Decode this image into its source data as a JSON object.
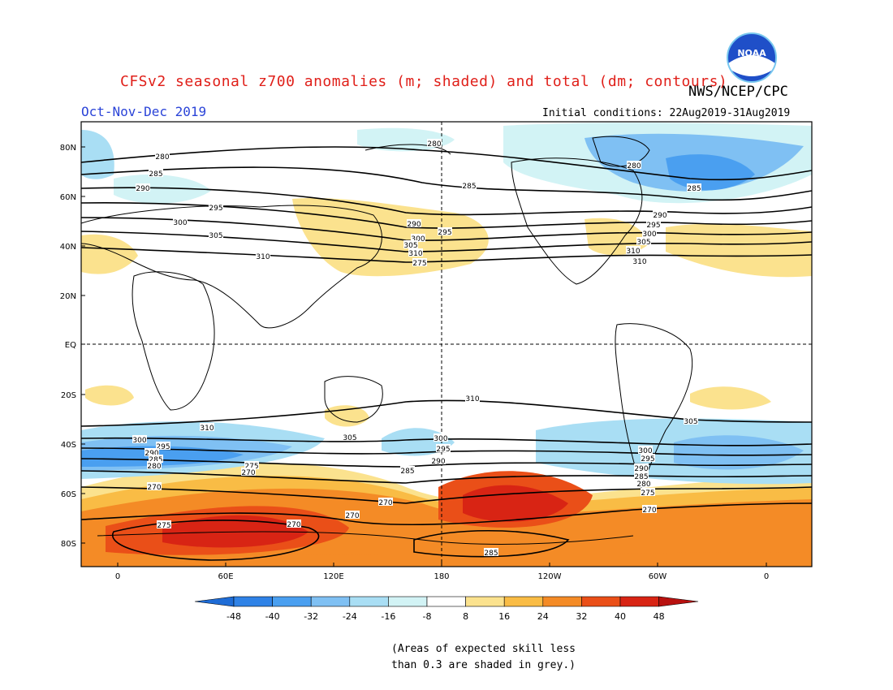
{
  "header": {
    "title": "CFSv2 seasonal z700 anomalies (m; shaded) and total (dm; contours)",
    "agency": "NWS/NCEP/CPC",
    "period": "Oct-Nov-Dec 2019",
    "initial_conditions": "Initial conditions: 22Aug2019-31Aug2019"
  },
  "logo": {
    "icon": "noaa-logo-icon",
    "text": "NOAA"
  },
  "map": {
    "lat_labels": [
      "80N",
      "60N",
      "40N",
      "20N",
      "EQ",
      "20S",
      "40S",
      "60S",
      "80S"
    ],
    "lon_labels": [
      "0",
      "60E",
      "120E",
      "180",
      "120W",
      "60W",
      "0"
    ],
    "contour_labels": [
      "280",
      "285",
      "290",
      "295",
      "300",
      "305",
      "310",
      "280",
      "285",
      "290",
      "295",
      "300",
      "305",
      "310",
      "275",
      "280",
      "285",
      "290",
      "295",
      "300",
      "305",
      "310",
      "310",
      "310",
      "310",
      "305",
      "300",
      "295",
      "290",
      "285",
      "280",
      "275",
      "270",
      "270",
      "275",
      "270",
      "270",
      "285",
      "300",
      "295",
      "290",
      "285",
      "305",
      "300",
      "295",
      "290",
      "285",
      "280",
      "275",
      "270",
      "270"
    ],
    "colors": {
      "land_outline": "#000000",
      "contour": "#000000",
      "grid": "#000000"
    }
  },
  "colorbar": {
    "labels": [
      "-48",
      "-40",
      "-32",
      "-24",
      "-16",
      "-8",
      "8",
      "16",
      "24",
      "32",
      "40",
      "48"
    ],
    "colors": [
      "#1e6cd6",
      "#2f82e6",
      "#4a9ff0",
      "#7fc0f3",
      "#a9def4",
      "#d2f3f5",
      "#ffffff",
      "#fbe28e",
      "#f9bc45",
      "#f48b26",
      "#ea4f18",
      "#d82414",
      "#b8110f"
    ]
  },
  "footnote": {
    "line1": "(Areas of expected skill less",
    "line2": "than 0.3 are shaded in grey.)"
  }
}
